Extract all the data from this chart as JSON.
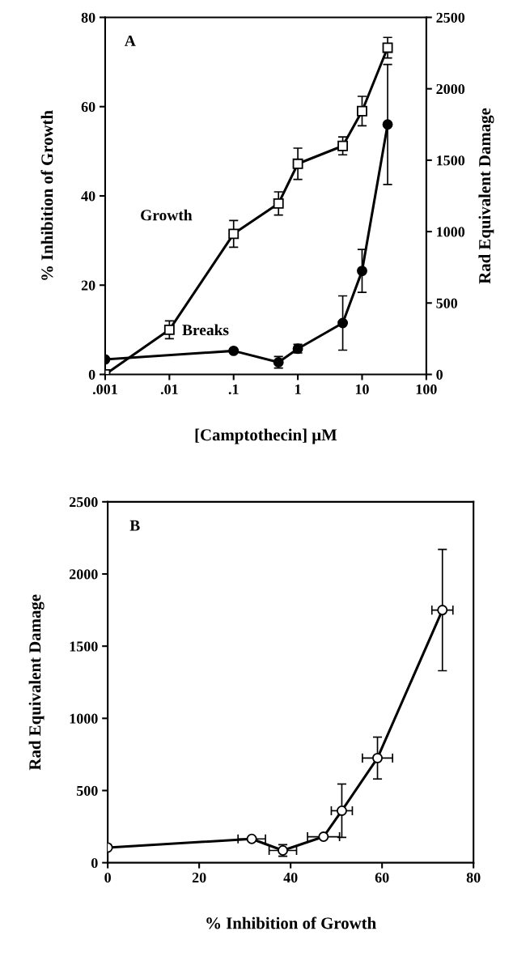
{
  "chart_data": [
    {
      "type": "line",
      "annotations": [
        "A"
      ],
      "xlabel": "[Camptothecin] μM",
      "ylabel": "% Inhibition of Growth",
      "y2label": "Rad Equivalent Damage",
      "log": "x",
      "xlim": [
        0.001,
        100
      ],
      "xticks": [
        {
          "value": 0.001,
          "label": ".001"
        },
        {
          "value": 0.01,
          "label": ".01"
        },
        {
          "value": 0.1,
          "label": ".1"
        },
        {
          "value": 1,
          "label": "1"
        },
        {
          "value": 10,
          "label": "10"
        },
        {
          "value": 100,
          "label": "100"
        }
      ],
      "ylim": [
        0,
        80
      ],
      "yticks": [
        0,
        20,
        40,
        60,
        80
      ],
      "y2lim": [
        0,
        2500
      ],
      "y2ticks": [
        0,
        500,
        1000,
        1500,
        2000,
        2500
      ],
      "grid": false,
      "legend": false,
      "line_style": "solid",
      "series": [
        {
          "name": "Growth",
          "color": "#000000",
          "marker": "square",
          "x": [
            0.001,
            0.01,
            0.1,
            0.5,
            1,
            5,
            10,
            25
          ],
          "values": [
            0,
            10,
            31.5,
            38.3,
            47.2,
            51.2,
            59,
            73.2
          ],
          "errors": [
            null,
            2,
            3,
            2.6,
            3.5,
            2,
            3.3,
            2.3
          ]
        },
        {
          "name": "Breaks",
          "color": "#000000",
          "marker": "circle",
          "axis": "y2",
          "x": [
            0.001,
            0.1,
            0.5,
            1,
            5,
            10,
            25
          ],
          "values": [
            105,
            165,
            85,
            180,
            360,
            725,
            1750
          ],
          "errors": [
            null,
            null,
            40,
            30,
            190,
            150,
            420
          ]
        }
      ]
    },
    {
      "type": "line",
      "annotations": [
        "B"
      ],
      "xlabel": "% Inhibition of Growth",
      "ylabel": "Rad Equivalent Damage",
      "xlim": [
        0,
        80
      ],
      "xticks": [
        0,
        20,
        40,
        60,
        80
      ],
      "ylim": [
        0,
        2500
      ],
      "yticks": [
        0,
        500,
        1000,
        1500,
        2000,
        2500
      ],
      "grid": false,
      "legend": false,
      "line_style": "solid",
      "series": [
        {
          "color": "#000000",
          "marker": "circle",
          "x": [
            0,
            31.5,
            38.3,
            47.2,
            51.2,
            59,
            73.2
          ],
          "values": [
            105,
            165,
            85,
            180,
            360,
            725,
            1750
          ],
          "errors": [
            null,
            null,
            40,
            null,
            185,
            145,
            420
          ],
          "xerrors": [
            null,
            3,
            3,
            3.5,
            2.3,
            3.3,
            2.3
          ]
        }
      ]
    }
  ]
}
